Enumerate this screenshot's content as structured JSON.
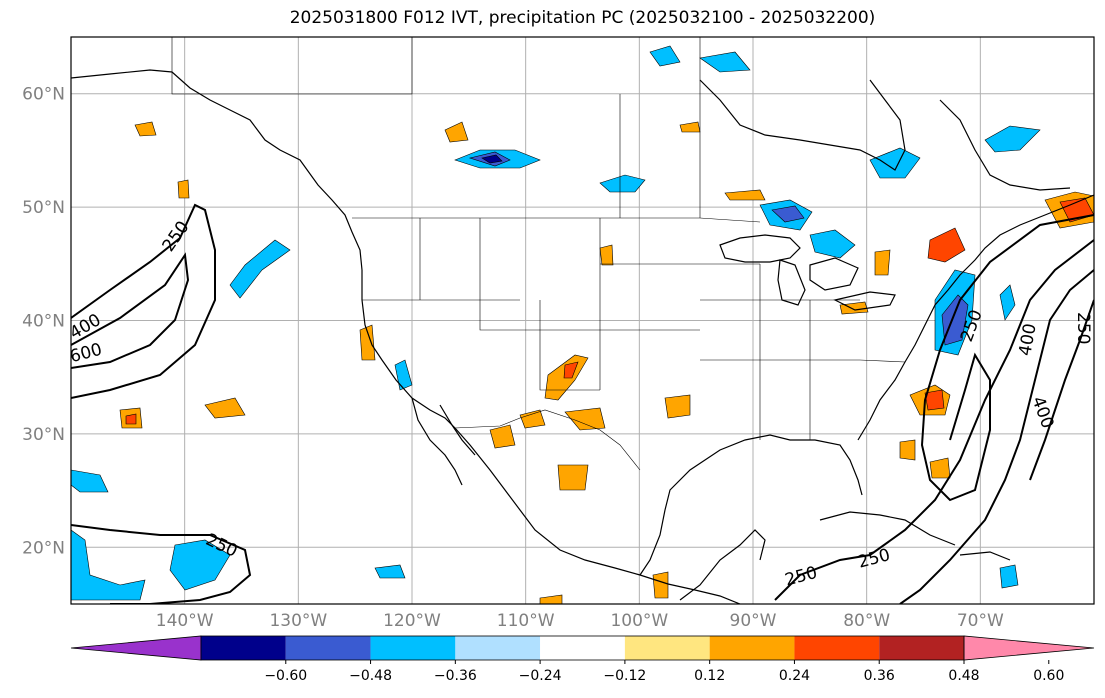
{
  "title": "2025031800 F012 IVT, precipitation PC (2025032100 - 2025032200)",
  "map": {
    "projection": "PlateCarree",
    "lon_range": [
      -150,
      -60
    ],
    "lat_range": [
      15,
      65
    ],
    "lon_ticks": [
      {
        "value": -140,
        "label": "140°W"
      },
      {
        "value": -130,
        "label": "130°W"
      },
      {
        "value": -120,
        "label": "120°W"
      },
      {
        "value": -110,
        "label": "110°W"
      },
      {
        "value": -100,
        "label": "100°W"
      },
      {
        "value": -90,
        "label": "90°W"
      },
      {
        "value": -80,
        "label": "80°W"
      },
      {
        "value": -70,
        "label": "70°W"
      }
    ],
    "lat_ticks": [
      {
        "value": 60,
        "label": "60°N"
      },
      {
        "value": 50,
        "label": "50°N"
      },
      {
        "value": 40,
        "label": "40°N"
      },
      {
        "value": 30,
        "label": "30°N"
      },
      {
        "value": 20,
        "label": "20°N"
      }
    ],
    "gridlines": true
  },
  "colorbar": {
    "levels": [
      "−0.60",
      "−0.48",
      "−0.36",
      "−0.24",
      "−0.12",
      "0.12",
      "0.24",
      "0.36",
      "0.48",
      "0.60"
    ],
    "colors": [
      "#9932cc",
      "#00008b",
      "#3a5bd1",
      "#00bfff",
      "#b0e0ff",
      "#ffffff",
      "#ffe680",
      "#ffa500",
      "#ff4500",
      "#b22222",
      "#ff88aa"
    ],
    "extend": "both"
  },
  "ivt_contour_labels": [
    "250",
    "400",
    "600",
    "250",
    "250",
    "250",
    "250",
    "400",
    "400",
    "250"
  ],
  "colors": {
    "grid": "#b0b0b0",
    "coast": "#000000",
    "tick_text": "#808080"
  }
}
